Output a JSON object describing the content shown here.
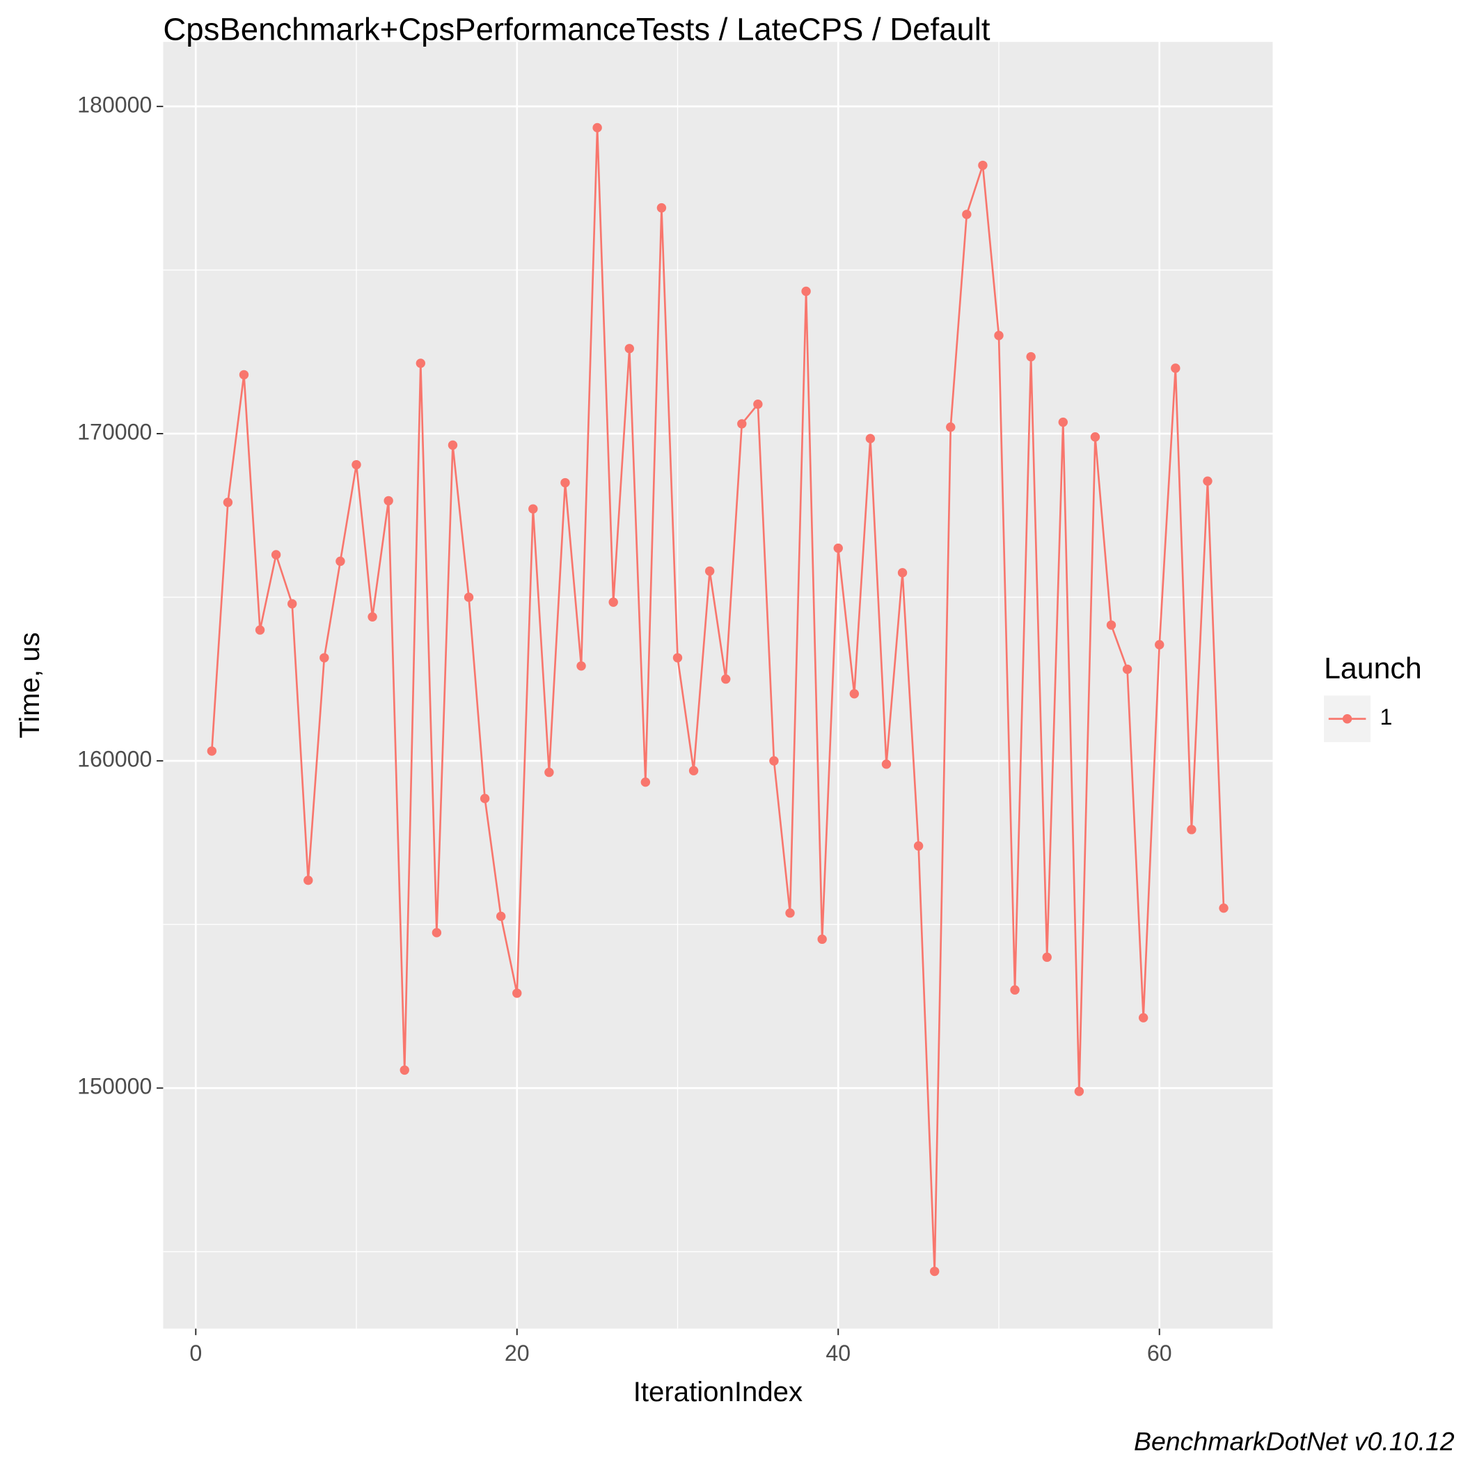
{
  "chart_data": {
    "type": "line",
    "title": "CpsBenchmark+CpsPerformanceTests / LateCPS / Default",
    "x_label": "IterationIndex",
    "y_label": "Time, us",
    "caption": "BenchmarkDotNet v0.10.12",
    "legend_title": "Launch",
    "legend_position": "right",
    "grid": true,
    "x": [
      1,
      2,
      3,
      4,
      5,
      6,
      7,
      8,
      9,
      10,
      11,
      12,
      13,
      14,
      15,
      16,
      17,
      18,
      19,
      20,
      21,
      22,
      23,
      24,
      25,
      26,
      27,
      28,
      29,
      30,
      31,
      32,
      33,
      34,
      35,
      36,
      37,
      38,
      39,
      40,
      41,
      42,
      43,
      44,
      45,
      46,
      47,
      48,
      49,
      50,
      51,
      52,
      53,
      54,
      55,
      56,
      57,
      58,
      59,
      60,
      61,
      62,
      63,
      64
    ],
    "series": [
      {
        "name": "1",
        "color": "#F8766D",
        "values": [
          160300,
          167900,
          171800,
          164000,
          166300,
          164800,
          156350,
          163150,
          166100,
          169050,
          164400,
          167950,
          150550,
          172150,
          154750,
          169650,
          165000,
          158850,
          155250,
          152900,
          167700,
          159650,
          168500,
          162900,
          179350,
          164850,
          172600,
          159350,
          176900,
          163150,
          159700,
          165800,
          162500,
          170300,
          170900,
          160000,
          155350,
          174350,
          154550,
          166500,
          162050,
          169850,
          159900,
          165750,
          157400,
          144400,
          170200,
          176700,
          178200,
          173000,
          153000,
          172350,
          154000,
          170350,
          149900,
          169900,
          164150,
          162800,
          152150,
          163550,
          172000,
          157900,
          168550,
          155500
        ]
      }
    ],
    "xlim": [
      -2.03,
      67.05
    ],
    "xticks": [
      0,
      20,
      40,
      60
    ],
    "ylim": [
      142650,
      181970
    ],
    "yticks": [
      150000,
      160000,
      170000,
      180000
    ]
  }
}
